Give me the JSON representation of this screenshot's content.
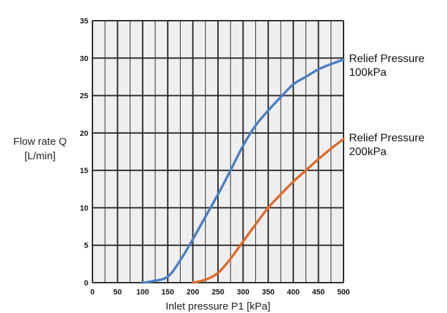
{
  "chart_data": {
    "type": "line",
    "xlabel": "Inlet pressure P1 [kPa]",
    "ylabel_line1": "Flow rate Q",
    "ylabel_line2": "[L/min]",
    "xlim": [
      0,
      500
    ],
    "ylim": [
      0,
      35
    ],
    "x_ticks": [
      "0",
      "50",
      "100",
      "150",
      "200",
      "250",
      "300",
      "350",
      "400",
      "450",
      "500"
    ],
    "y_ticks": [
      "0",
      "5",
      "10",
      "15",
      "20",
      "25",
      "30",
      "35"
    ],
    "grid": true,
    "series": [
      {
        "label_line1": "Relief Pressure",
        "label_line2": "100kPa",
        "color": "#4a7fc1",
        "x": [
          100,
          120,
          150,
          175,
          200,
          225,
          250,
          275,
          300,
          325,
          350,
          375,
          400,
          425,
          450,
          475,
          500
        ],
        "y": [
          0,
          0.2,
          0.8,
          3.0,
          5.8,
          8.8,
          11.8,
          15.0,
          18.3,
          21.0,
          23.0,
          24.8,
          26.5,
          27.5,
          28.5,
          29.2,
          29.8
        ]
      },
      {
        "label_line1": "Relief Pressure",
        "label_line2": "200kPa",
        "color": "#e06a2a",
        "x": [
          200,
          225,
          250,
          275,
          300,
          325,
          350,
          375,
          400,
          425,
          450,
          475,
          500
        ],
        "y": [
          0,
          0.4,
          1.3,
          3.2,
          5.5,
          7.8,
          10.0,
          11.8,
          13.5,
          15.0,
          16.5,
          17.9,
          19.2
        ]
      }
    ]
  }
}
